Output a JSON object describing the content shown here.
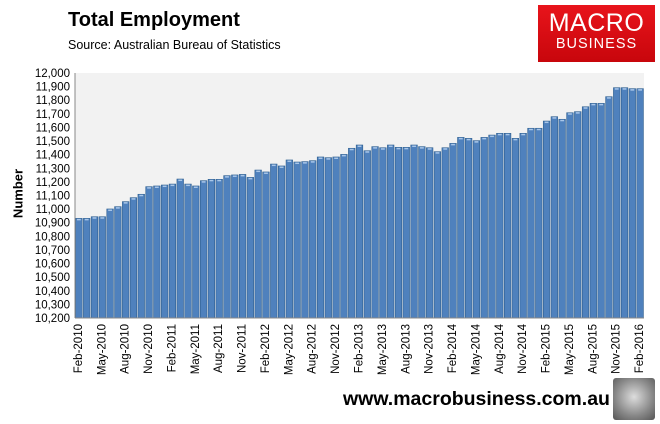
{
  "header": {
    "title": "Total Employment",
    "source": "Source: Australian Bureau of Statistics"
  },
  "logo": {
    "line1": "MACRO",
    "line2": "BUSINESS",
    "color": "#e0121a"
  },
  "footer": {
    "url": "www.macrobusiness.com.au",
    "icon": "wolf-logo-icon"
  },
  "chart_data": {
    "type": "bar",
    "title": "Total Employment",
    "xlabel": "",
    "ylabel": "Number",
    "ylim": [
      10200,
      12000
    ],
    "yticks": [
      "10,200",
      "10,300",
      "10,400",
      "10,500",
      "10,600",
      "10,700",
      "10,800",
      "10,900",
      "11,000",
      "11,100",
      "11,200",
      "11,300",
      "11,400",
      "11,500",
      "11,600",
      "11,700",
      "11,800",
      "11,900",
      "12,000"
    ],
    "xticks": [
      "Feb-2010",
      "May-2010",
      "Aug-2010",
      "Nov-2010",
      "Feb-2011",
      "May-2011",
      "Aug-2011",
      "Nov-2011",
      "Feb-2012",
      "May-2012",
      "Aug-2012",
      "Nov-2012",
      "Feb-2013",
      "May-2013",
      "Aug-2013",
      "Nov-2013",
      "Feb-2014",
      "May-2014",
      "Aug-2014",
      "Nov-2014",
      "Feb-2015",
      "May-2015",
      "Aug-2015",
      "Nov-2015",
      "Feb-2016"
    ],
    "x_start": "Feb-2010",
    "x_end": "Feb-2016",
    "frequency": "monthly",
    "bar_color": "#4f81bd",
    "plot_background": "#f2f2f2",
    "grid": false,
    "values": [
      10932,
      10932,
      10944,
      10944,
      11001,
      11018,
      11055,
      11084,
      11109,
      11165,
      11170,
      11177,
      11184,
      11221,
      11184,
      11170,
      11209,
      11219,
      11219,
      11246,
      11251,
      11255,
      11233,
      11287,
      11273,
      11331,
      11317,
      11361,
      11346,
      11349,
      11356,
      11383,
      11378,
      11383,
      11402,
      11447,
      11471,
      11429,
      11459,
      11451,
      11471,
      11454,
      11454,
      11471,
      11459,
      11451,
      11422,
      11451,
      11483,
      11527,
      11520,
      11503,
      11527,
      11544,
      11557,
      11557,
      11520,
      11557,
      11594,
      11594,
      11647,
      11679,
      11660,
      11708,
      11716,
      11752,
      11777,
      11777,
      11826,
      11892,
      11892,
      11885,
      11885
    ]
  }
}
